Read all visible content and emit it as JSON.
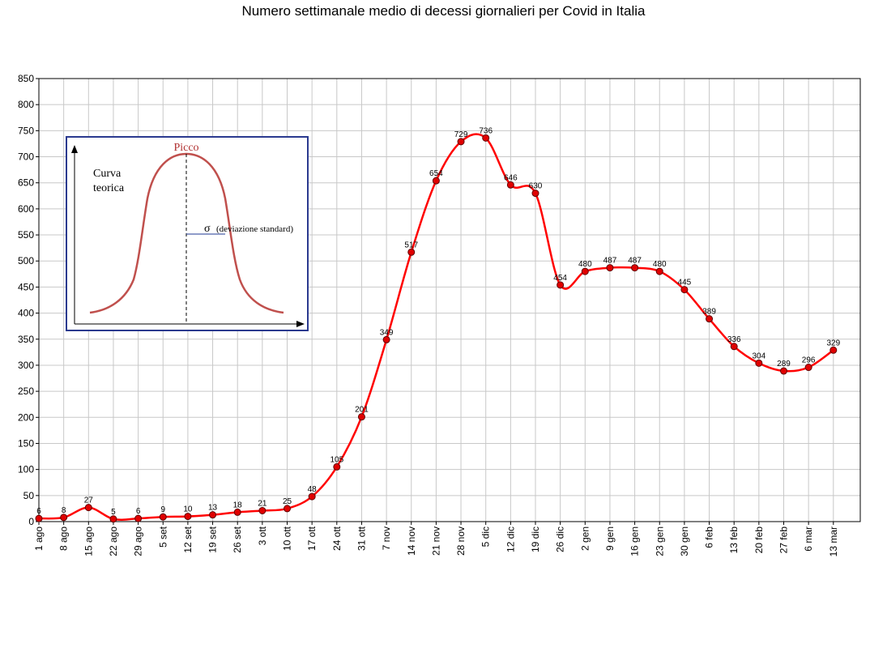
{
  "chart_data": {
    "type": "line",
    "title": "Numero settimanale medio di decessi giornalieri per Covid in Italia",
    "xlabel": "",
    "ylabel": "",
    "ylim": [
      0,
      850
    ],
    "y_ticks": [
      0,
      50,
      100,
      150,
      200,
      250,
      300,
      350,
      400,
      450,
      500,
      550,
      600,
      650,
      700,
      750,
      800,
      850
    ],
    "grid": true,
    "categories": [
      "1 ago",
      "8 ago",
      "15 ago",
      "22 ago",
      "29 ago",
      "5 set",
      "12 set",
      "19 set",
      "26 set",
      "3 ott",
      "10 ott",
      "17 ott",
      "24 ott",
      "31 ott",
      "7 nov",
      "14 nov",
      "21 nov",
      "28 nov",
      "5 dic",
      "12 dic",
      "19 dic",
      "26 dic",
      "2 gen",
      "9 gen",
      "16 gen",
      "23 gen",
      "30 gen",
      "6 feb",
      "13 feb",
      "20 feb",
      "27 feb",
      "6 mar",
      "13 mar"
    ],
    "series": [
      {
        "values": [
          6,
          8,
          27,
          5,
          6,
          9,
          10,
          13,
          18,
          21,
          25,
          48,
          105,
          201,
          349,
          517,
          654,
          729,
          736,
          646,
          630,
          454,
          480,
          487,
          487,
          480,
          445,
          389,
          336,
          304,
          289,
          296,
          329
        ],
        "color": "#ff0000",
        "marker_color": "#e00000"
      }
    ]
  },
  "inset": {
    "ylabel_line1": "Curva",
    "ylabel_line2": "teorica",
    "peak_label": "Picco",
    "sigma_symbol": "σ",
    "sigma_label": "(deviazione standard)",
    "border_color": "#2b3a8f",
    "curve_color": "#c0504d"
  }
}
